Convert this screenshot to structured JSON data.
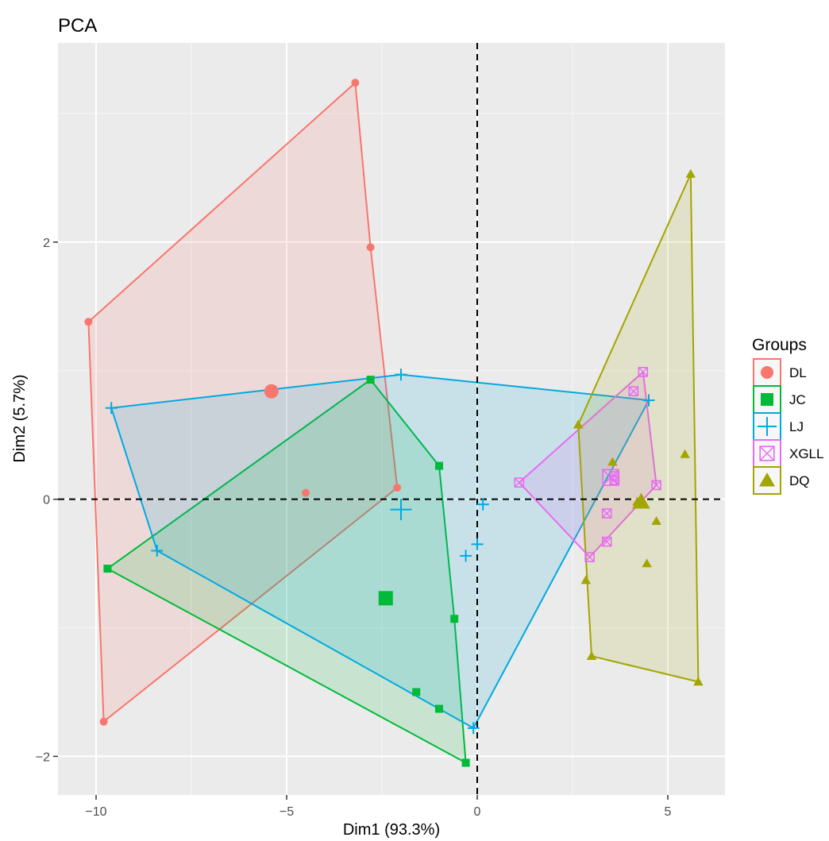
{
  "chart_data": {
    "type": "scatter",
    "title": "PCA",
    "xlabel": "Dim1 (93.3%)",
    "ylabel": "Dim2 (5.7%)",
    "xlim": [
      -11.0,
      6.5
    ],
    "ylim": [
      -2.3,
      3.55
    ],
    "x_ticks": [
      -10,
      -5,
      0,
      5
    ],
    "x_tick_labels": [
      "−10",
      "−5",
      "0",
      "5"
    ],
    "y_ticks": [
      -2,
      0,
      2
    ],
    "y_tick_labels": [
      "−2",
      "0",
      "2"
    ],
    "grid": true,
    "reference_lines": {
      "x": 0,
      "y": 0,
      "style": "dashed"
    },
    "legend": {
      "title": "Groups",
      "position": "right"
    },
    "series": [
      {
        "name": "DL",
        "color": "#F8766D",
        "marker": "circle",
        "points": [
          [
            -10.2,
            1.38
          ],
          [
            -3.2,
            3.24
          ],
          [
            -2.8,
            1.96
          ],
          [
            -2.1,
            0.09
          ],
          [
            -4.5,
            0.05
          ],
          [
            -9.8,
            -1.73
          ]
        ],
        "hull": [
          [
            -3.2,
            3.24
          ],
          [
            -2.8,
            1.96
          ],
          [
            -2.1,
            0.09
          ],
          [
            -9.8,
            -1.73
          ],
          [
            -10.2,
            1.38
          ]
        ],
        "centroid": [
          -5.4,
          0.84
        ]
      },
      {
        "name": "JC",
        "color": "#00BA38",
        "marker": "square",
        "points": [
          [
            -2.8,
            0.93
          ],
          [
            -1.0,
            0.26
          ],
          [
            -0.6,
            -0.93
          ],
          [
            -1.6,
            -1.5
          ],
          [
            -1.0,
            -1.63
          ],
          [
            -0.3,
            -2.05
          ],
          [
            -9.7,
            -0.54
          ]
        ],
        "hull": [
          [
            -2.8,
            0.93
          ],
          [
            -1.0,
            0.26
          ],
          [
            -0.6,
            -0.93
          ],
          [
            -0.3,
            -2.05
          ],
          [
            -9.7,
            -0.54
          ]
        ],
        "centroid": [
          -2.4,
          -0.77
        ]
      },
      {
        "name": "LJ",
        "color": "#00A9E0",
        "marker": "plus",
        "points": [
          [
            -9.6,
            0.71
          ],
          [
            -2.0,
            0.97
          ],
          [
            4.5,
            0.77
          ],
          [
            0.15,
            -0.04
          ],
          [
            0.0,
            -0.35
          ],
          [
            -0.3,
            -0.44
          ],
          [
            -8.4,
            -0.4
          ],
          [
            -0.1,
            -1.78
          ]
        ],
        "hull": [
          [
            -9.6,
            0.71
          ],
          [
            -2.0,
            0.97
          ],
          [
            4.5,
            0.77
          ],
          [
            -0.1,
            -1.78
          ],
          [
            -8.4,
            -0.4
          ]
        ],
        "centroid": [
          -2.0,
          -0.08
        ]
      },
      {
        "name": "XGLL",
        "color": "#E76BF3",
        "marker": "square-cross",
        "points": [
          [
            1.1,
            0.13
          ],
          [
            4.35,
            0.99
          ],
          [
            4.1,
            0.84
          ],
          [
            3.6,
            0.15
          ],
          [
            3.6,
            0.18
          ],
          [
            4.7,
            0.11
          ],
          [
            3.4,
            -0.11
          ],
          [
            3.4,
            -0.33
          ],
          [
            2.95,
            -0.45
          ]
        ],
        "hull": [
          [
            1.1,
            0.13
          ],
          [
            4.35,
            0.99
          ],
          [
            4.7,
            0.11
          ],
          [
            2.95,
            -0.45
          ]
        ],
        "centroid": [
          3.5,
          0.17
        ]
      },
      {
        "name": "DQ",
        "color": "#A3A500",
        "marker": "triangle",
        "points": [
          [
            5.6,
            2.53
          ],
          [
            2.65,
            0.58
          ],
          [
            3.55,
            0.29
          ],
          [
            5.45,
            0.35
          ],
          [
            4.2,
            -0.02
          ],
          [
            4.7,
            -0.17
          ],
          [
            4.45,
            -0.5
          ],
          [
            2.85,
            -0.63
          ],
          [
            3.0,
            -1.22
          ],
          [
            5.8,
            -1.42
          ]
        ],
        "hull": [
          [
            5.6,
            2.53
          ],
          [
            5.8,
            -1.42
          ],
          [
            3.0,
            -1.22
          ],
          [
            2.65,
            0.58
          ]
        ],
        "centroid": [
          4.3,
          -0.02
        ]
      }
    ]
  }
}
